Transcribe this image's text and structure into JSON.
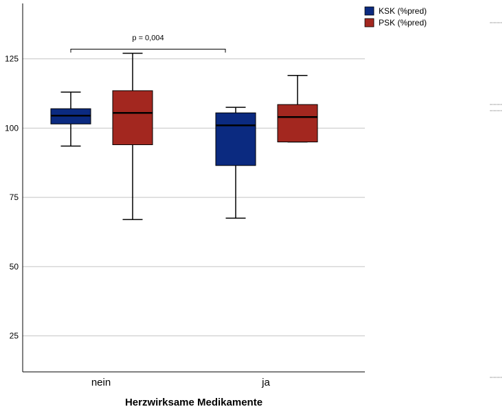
{
  "chart_data": {
    "type": "boxplot",
    "xlabel": "Herzwirksame Medikamente",
    "ylabel": "",
    "categories": [
      "nein",
      "ja"
    ],
    "ylim": [
      12,
      145
    ],
    "yticks": [
      "25",
      "50",
      "75",
      "100",
      "125"
    ],
    "grid": "horizontal",
    "legend_position": "top-right",
    "series": [
      {
        "name": "KSK (%pred)",
        "color": "#0b2a80",
        "boxes": [
          {
            "category": "nein",
            "min": 93.5,
            "q1": 101.5,
            "median": 104.5,
            "q3": 107,
            "max": 113
          },
          {
            "category": "ja",
            "min": 67.5,
            "q1": 86.5,
            "median": 101,
            "q3": 105.5,
            "max": 107.5
          }
        ]
      },
      {
        "name": "PSK (%pred)",
        "color": "#a3271f",
        "boxes": [
          {
            "category": "nein",
            "min": 67,
            "q1": 94,
            "median": 105.5,
            "q3": 113.5,
            "max": 127
          },
          {
            "category": "ja",
            "min": 95,
            "q1": 95,
            "median": 104,
            "q3": 108.5,
            "max": 119
          }
        ]
      }
    ],
    "annotations": [
      {
        "text": "p = 0,004",
        "bracket_value": 128.5,
        "from": {
          "series": 0,
          "category": 0
        },
        "to": {
          "series": 0,
          "category": 1
        }
      }
    ]
  }
}
